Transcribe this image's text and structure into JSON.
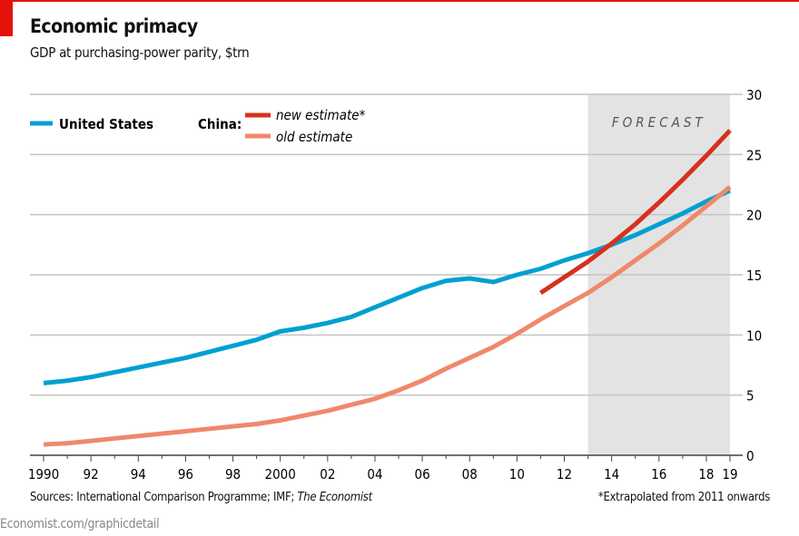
{
  "header": {
    "title": "Economic primacy",
    "subtitle": "GDP at purchasing-power parity, $trn"
  },
  "footer": {
    "sources_prefix": "Sources: International Comparison Programme; IMF; ",
    "sources_italic": "The Economist",
    "note": "*Extrapolated from 2011 onwards",
    "url": "Economist.com/graphicdetail"
  },
  "colors": {
    "us": "#00a0d1",
    "china_new": "#d7301f",
    "china_old": "#f0886b",
    "forecast_bg": "#e3e3e3",
    "accent": "#e3120b"
  },
  "chart_data": {
    "type": "line",
    "ylim": [
      0,
      30
    ],
    "yticks": [
      0,
      5,
      10,
      15,
      20,
      25,
      30
    ],
    "xlim": [
      1990,
      2019
    ],
    "xtick_labels": [
      {
        "year": 1990,
        "label": "1990"
      },
      {
        "year": 1992,
        "label": "92"
      },
      {
        "year": 1994,
        "label": "94"
      },
      {
        "year": 1996,
        "label": "96"
      },
      {
        "year": 1998,
        "label": "98"
      },
      {
        "year": 2000,
        "label": "2000"
      },
      {
        "year": 2002,
        "label": "02"
      },
      {
        "year": 2004,
        "label": "04"
      },
      {
        "year": 2006,
        "label": "06"
      },
      {
        "year": 2008,
        "label": "08"
      },
      {
        "year": 2010,
        "label": "10"
      },
      {
        "year": 2012,
        "label": "12"
      },
      {
        "year": 2014,
        "label": "14"
      },
      {
        "year": 2016,
        "label": "16"
      },
      {
        "year": 2018,
        "label": "18"
      },
      {
        "year": 2019,
        "label": "19"
      }
    ],
    "forecast": {
      "label": "FORECAST",
      "from": 2013,
      "to": 2019
    },
    "grid": true,
    "legend_position": "top-left",
    "legend": {
      "us": "United States",
      "china_prefix": "China:",
      "china_new": "new estimate*",
      "china_old": "old estimate"
    },
    "series": [
      {
        "name": "United States",
        "key": "us",
        "x_start": 1990,
        "values": [
          6.0,
          6.2,
          6.5,
          6.9,
          7.3,
          7.7,
          8.1,
          8.6,
          9.1,
          9.6,
          10.3,
          10.6,
          11.0,
          11.5,
          12.3,
          13.1,
          13.9,
          14.5,
          14.7,
          14.4,
          15.0,
          15.5,
          16.2,
          16.8,
          17.5,
          18.3,
          19.2,
          20.1,
          21.1,
          22.0
        ]
      },
      {
        "name": "old estimate",
        "key": "china_old",
        "x_start": 1990,
        "values": [
          0.9,
          1.0,
          1.2,
          1.4,
          1.6,
          1.8,
          2.0,
          2.2,
          2.4,
          2.6,
          2.9,
          3.3,
          3.7,
          4.2,
          4.7,
          5.4,
          6.2,
          7.2,
          8.1,
          9.0,
          10.1,
          11.3,
          12.4,
          13.5,
          14.8,
          16.2,
          17.6,
          19.1,
          20.7,
          22.3
        ]
      },
      {
        "name": "new estimate*",
        "key": "china_new",
        "x_start": 2011,
        "values": [
          13.5,
          14.8,
          16.1,
          17.6,
          19.2,
          21.0,
          22.9,
          24.9,
          27.0
        ]
      }
    ]
  }
}
